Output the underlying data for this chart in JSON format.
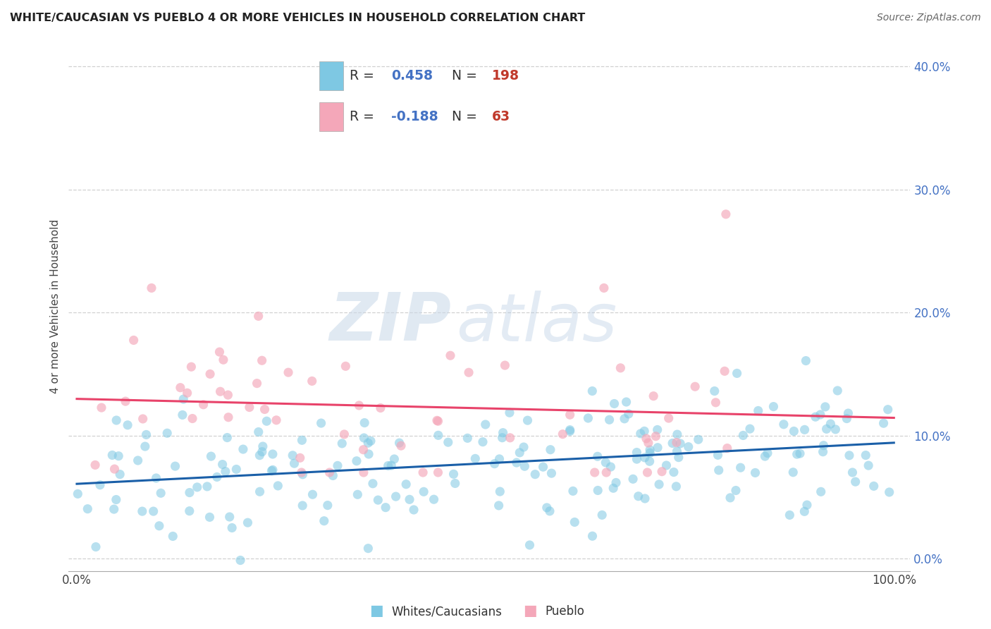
{
  "title": "WHITE/CAUCASIAN VS PUEBLO 4 OR MORE VEHICLES IN HOUSEHOLD CORRELATION CHART",
  "source": "Source: ZipAtlas.com",
  "xlabel_blue": "Whites/Caucasians",
  "xlabel_pink": "Pueblo",
  "ylabel": "4 or more Vehicles in Household",
  "xlim": [
    0,
    100
  ],
  "ylim": [
    -1,
    42
  ],
  "yticks": [
    0,
    10,
    20,
    30,
    40
  ],
  "ytick_labels": [
    "0.0%",
    "10.0%",
    "20.0%",
    "30.0%",
    "40.0%"
  ],
  "R_blue": 0.458,
  "N_blue": 198,
  "R_pink": -0.188,
  "N_pink": 63,
  "blue_color": "#7ec8e3",
  "pink_color": "#f4a7b9",
  "blue_line_color": "#1a5fa8",
  "pink_line_color": "#e8436a",
  "ytick_color": "#4472c4",
  "watermark_zip": "ZIP",
  "watermark_atlas": "atlas",
  "seed_blue": 101,
  "seed_pink": 202
}
